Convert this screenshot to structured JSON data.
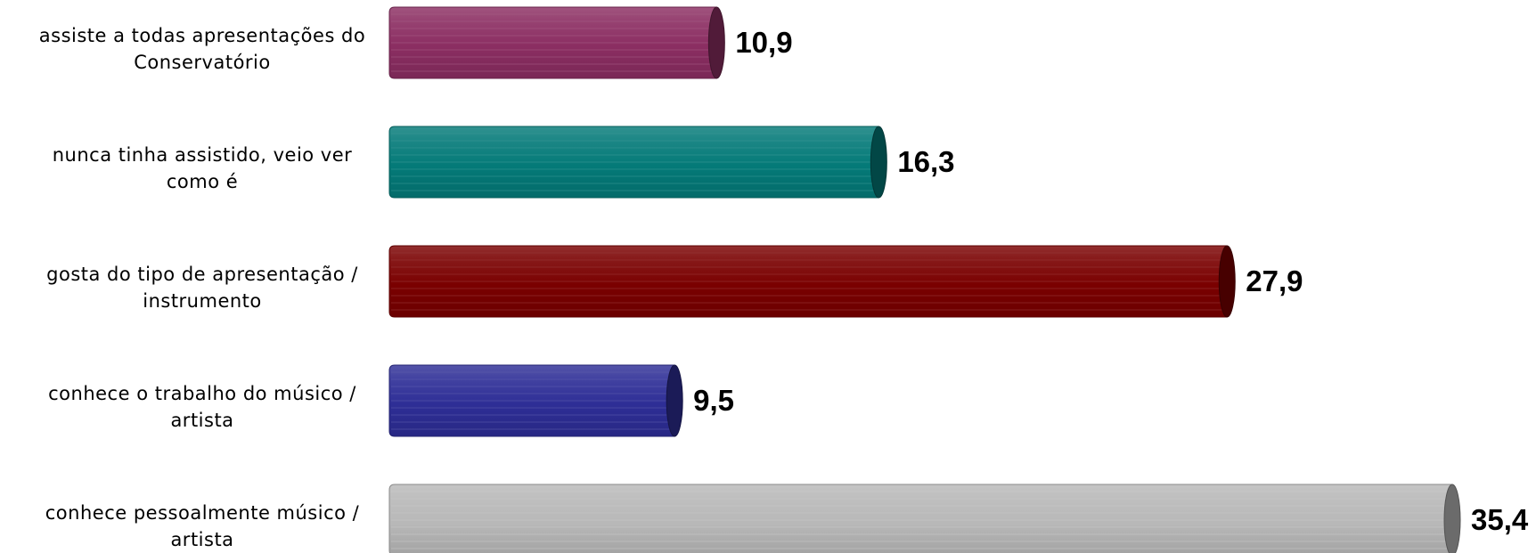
{
  "chart_data": {
    "type": "bar",
    "orientation": "horizontal",
    "style": "3d-cylinder",
    "title": "",
    "xlabel": "",
    "ylabel": "",
    "xlim": [
      0,
      35.4
    ],
    "grid": false,
    "legend": "none",
    "categories": [
      [
        "assiste a todas  apresentações do",
        "Conservatório"
      ],
      [
        "nunca tinha assistido, veio ver",
        "como é"
      ],
      [
        "gosta do tipo de apresentação /",
        "instrumento"
      ],
      [
        "conhece o trabalho do músico /",
        "artista"
      ],
      [
        "conhece pessoalmente músico /",
        "artista"
      ]
    ],
    "values": [
      10.9,
      16.3,
      27.9,
      9.5,
      35.4
    ],
    "value_labels": [
      "10,9",
      "16,3",
      "27,9",
      "9,5",
      "35,4"
    ],
    "colors": [
      "#8b2e62",
      "#047a78",
      "#7a0000",
      "#2e2e96",
      "#b8b8b8"
    ]
  }
}
